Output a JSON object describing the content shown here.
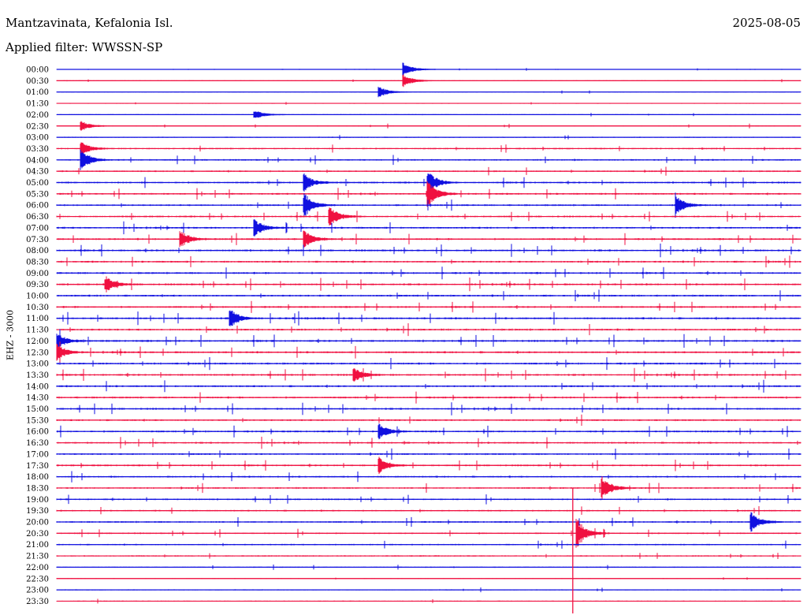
{
  "header": {
    "station": "Mantzavinata, Kefalonia Isl.",
    "date": "2025-08-05",
    "filter": "Applied filter: WWSSN-SP"
  },
  "channel_label": "EHZ - 3000",
  "colors": {
    "blue": "#1010e0",
    "red": "#f01040"
  },
  "chart_data": {
    "type": "line",
    "subtype": "helicorder",
    "title": "Mantzavinata, Kefalonia Isl.",
    "date": "2025-08-05",
    "filter": "WWSSN-SP",
    "channel": "EHZ - 3000",
    "row_labels": [
      "00:00",
      "00:30",
      "01:00",
      "01:30",
      "02:00",
      "02:30",
      "03:00",
      "03:30",
      "04:00",
      "04:30",
      "05:00",
      "05:30",
      "06:00",
      "06:30",
      "07:00",
      "07:30",
      "08:00",
      "08:30",
      "09:00",
      "09:30",
      "10:00",
      "10:30",
      "11:00",
      "11:30",
      "12:00",
      "12:30",
      "13:00",
      "13:30",
      "14:00",
      "14:30",
      "15:00",
      "15:30",
      "16:00",
      "16:30",
      "17:00",
      "17:30",
      "18:00",
      "18:30",
      "19:00",
      "19:30",
      "20:00",
      "20:30",
      "21:00",
      "21:30",
      "22:00",
      "22:30",
      "23:00",
      "23:30"
    ],
    "row_colors": [
      "blue",
      "red"
    ],
    "activity_level": [
      0.6,
      0.7,
      0.7,
      0.5,
      0.8,
      1.0,
      1.2,
      2.0,
      2.4,
      2.2,
      2.8,
      2.8,
      2.8,
      2.6,
      3.0,
      3.0,
      3.2,
      3.0,
      3.2,
      3.2,
      3.0,
      3.0,
      3.4,
      3.2,
      3.4,
      3.4,
      3.2,
      3.2,
      3.2,
      3.0,
      3.0,
      2.8,
      3.0,
      2.8,
      2.8,
      2.8,
      2.6,
      2.4,
      2.4,
      2.2,
      2.4,
      2.2,
      2.0,
      1.6,
      1.2,
      1.0,
      1.0,
      1.0
    ],
    "events": [
      {
        "row": 0,
        "time_min": 14,
        "amp": 1.4
      },
      {
        "row": 1,
        "time_min": 14,
        "amp": 1.3
      },
      {
        "row": 2,
        "time_min": 13,
        "amp": 1.2
      },
      {
        "row": 4,
        "time_min": 8,
        "amp": 1.0
      },
      {
        "row": 5,
        "time_min": 1,
        "amp": 1.0
      },
      {
        "row": 7,
        "time_min": 1,
        "amp": 1.4
      },
      {
        "row": 8,
        "time_min": 1,
        "amp": 2.2
      },
      {
        "row": 10,
        "time_min": 10,
        "amp": 1.8
      },
      {
        "row": 10,
        "time_min": 15,
        "amp": 2.4
      },
      {
        "row": 11,
        "time_min": 15,
        "amp": 2.6
      },
      {
        "row": 12,
        "time_min": 10,
        "amp": 2.6
      },
      {
        "row": 12,
        "time_min": 25,
        "amp": 2.0
      },
      {
        "row": 13,
        "time_min": 11,
        "amp": 2.4
      },
      {
        "row": 14,
        "time_min": 8,
        "amp": 1.8
      },
      {
        "row": 15,
        "time_min": 5,
        "amp": 1.8
      },
      {
        "row": 15,
        "time_min": 10,
        "amp": 1.8
      },
      {
        "row": 19,
        "time_min": 2,
        "amp": 1.6
      },
      {
        "row": 22,
        "time_min": 7,
        "amp": 2.0
      },
      {
        "row": 24,
        "time_min": 0,
        "amp": 1.8
      },
      {
        "row": 25,
        "time_min": 0,
        "amp": 1.8
      },
      {
        "row": 27,
        "time_min": 12,
        "amp": 1.6
      },
      {
        "row": 32,
        "time_min": 13,
        "amp": 1.6
      },
      {
        "row": 35,
        "time_min": 13,
        "amp": 1.8
      },
      {
        "row": 37,
        "time_min": 22,
        "amp": 2.4
      },
      {
        "row": 41,
        "time_min": 21,
        "amp": 3.0
      },
      {
        "row": 40,
        "time_min": 28,
        "amp": 2.2
      }
    ]
  }
}
